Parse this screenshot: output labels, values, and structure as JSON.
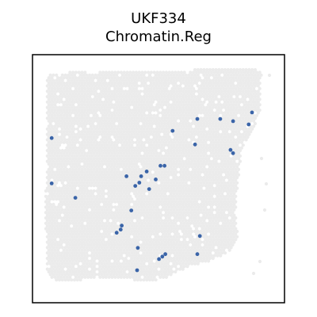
{
  "chart_data": {
    "type": "scatter",
    "title_line1": "UKF334",
    "title_line2": "Chromatin.Reg",
    "xlabel": "",
    "ylabel": "",
    "axis_ticks": "none",
    "grid": false,
    "background_tissue_color": "#ebebeb",
    "spot_color": "#3a64a8",
    "frame_color": "#000000",
    "xlim": [
      0,
      100
    ],
    "ylim": [
      0,
      100
    ],
    "points": [
      {
        "x": 87.1,
        "y": 76.7
      },
      {
        "x": 65.4,
        "y": 74.1
      },
      {
        "x": 74.5,
        "y": 74.1
      },
      {
        "x": 79.6,
        "y": 73.2
      },
      {
        "x": 85.8,
        "y": 71.9
      },
      {
        "x": 55.6,
        "y": 69.3
      },
      {
        "x": 7.6,
        "y": 66.4
      },
      {
        "x": 64.5,
        "y": 63.8
      },
      {
        "x": 78.6,
        "y": 61.6
      },
      {
        "x": 79.6,
        "y": 60.3
      },
      {
        "x": 50.8,
        "y": 55.2
      },
      {
        "x": 52.4,
        "y": 55.2
      },
      {
        "x": 45.3,
        "y": 52.9
      },
      {
        "x": 37.3,
        "y": 51.0
      },
      {
        "x": 43.1,
        "y": 51.0
      },
      {
        "x": 48.9,
        "y": 49.7
      },
      {
        "x": 42.4,
        "y": 48.4
      },
      {
        "x": 7.6,
        "y": 48.1
      },
      {
        "x": 40.8,
        "y": 47.1
      },
      {
        "x": 46.3,
        "y": 45.8
      },
      {
        "x": 17.0,
        "y": 42.3
      },
      {
        "x": 39.2,
        "y": 37.2
      },
      {
        "x": 35.4,
        "y": 31.1
      },
      {
        "x": 35.0,
        "y": 29.5
      },
      {
        "x": 33.4,
        "y": 28.2
      },
      {
        "x": 66.4,
        "y": 26.9
      },
      {
        "x": 41.8,
        "y": 22.1
      },
      {
        "x": 52.7,
        "y": 19.6
      },
      {
        "x": 51.5,
        "y": 18.6
      },
      {
        "x": 65.4,
        "y": 19.6
      },
      {
        "x": 50.2,
        "y": 17.6
      },
      {
        "x": 41.5,
        "y": 13.1
      }
    ]
  }
}
